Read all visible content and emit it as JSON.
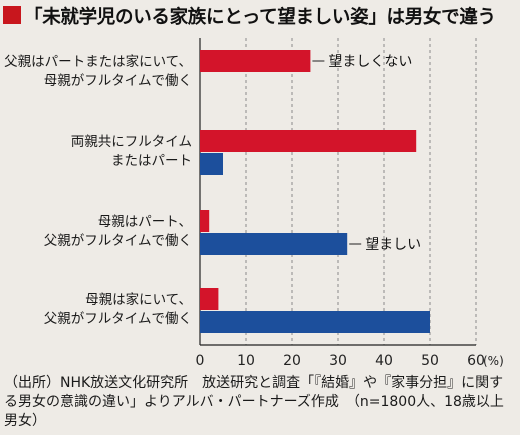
{
  "title": "「未就学児のいる家族にとって望ましい姿」は男女で違う",
  "colors": {
    "accent": "#c8161d",
    "series_a": "#d3142a",
    "series_b": "#1c4f9c",
    "background": "#eeebe6"
  },
  "chart_data": {
    "type": "bar",
    "orientation": "horizontal",
    "title": "「未就学児のいる家族にとって望ましい姿」は男女で違う",
    "categories": [
      [
        "父親はパートまたは家にいて、",
        "母親がフルタイムで働く"
      ],
      [
        "両親共にフルタイム",
        "またはパート"
      ],
      [
        "母親はパート、",
        "父親がフルタイムで働く"
      ],
      [
        "母親は家にいて、",
        "父親がフルタイムで働く"
      ]
    ],
    "series": [
      {
        "name": "望ましくない",
        "color": "#d3142a",
        "values": [
          24,
          47,
          2,
          4
        ]
      },
      {
        "name": "望ましい",
        "color": "#1c4f9c",
        "values": [
          null,
          5,
          32,
          50
        ]
      }
    ],
    "annotations": [
      {
        "text": "望ましくない",
        "series": 0,
        "category": 0
      },
      {
        "text": "望ましい",
        "series": 1,
        "category": 2
      }
    ],
    "xlim": [
      0,
      60
    ],
    "xticks": [
      0,
      10,
      20,
      30,
      40,
      50,
      60
    ],
    "xunit": "(%)",
    "grid": "vertical-dashed"
  },
  "source": {
    "text": "（出所）NHK放送文化研究所　放送研究と調査「『結婚』や『家事分担』に関する男女の意識の違い」よりアルバ・パートナーズ作成　（n=1800人、18歳以上男女）"
  }
}
